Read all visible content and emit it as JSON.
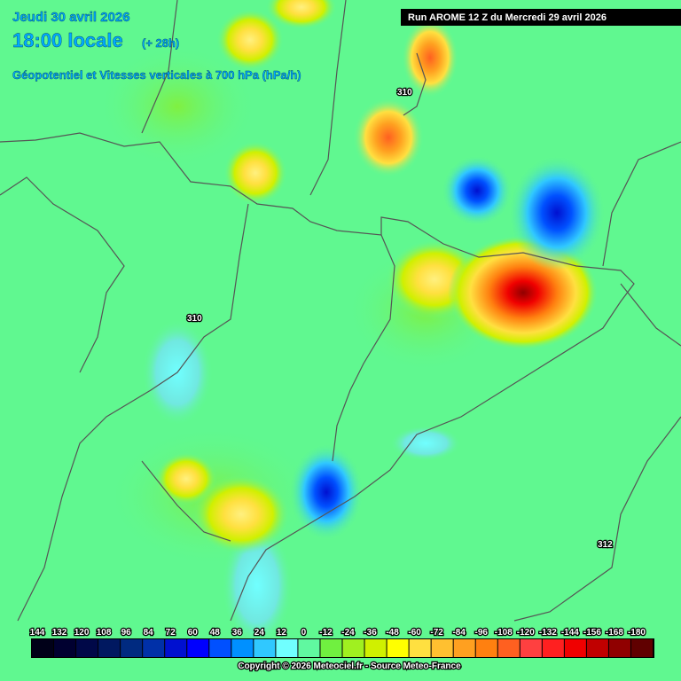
{
  "header": {
    "date": "Jeudi 30 avril 2026",
    "time": "18:00 locale",
    "offset": "(+ 28h)",
    "field": "Géopotentiel et Vitesses verticales à 700 hPa (hPa/h)"
  },
  "run": "Run AROME 12 Z du Mercredi 29 avril 2026",
  "contour_labels": [
    "310",
    "310",
    "312"
  ],
  "legend": {
    "ticks": [
      144,
      132,
      120,
      108,
      96,
      84,
      72,
      60,
      48,
      36,
      24,
      12,
      0,
      -12,
      -24,
      -36,
      -48,
      -60,
      -72,
      -84,
      -96,
      -108,
      -120,
      -132,
      -144,
      -156,
      -168,
      -180
    ],
    "colors": [
      "#000018",
      "#000030",
      "#000848",
      "#001860",
      "#002a80",
      "#0030a8",
      "#0010d0",
      "#0000ff",
      "#0050ff",
      "#0090ff",
      "#30c8ff",
      "#70ffff",
      "#60f8a0",
      "#70f040",
      "#a0f020",
      "#d0f000",
      "#ffff00",
      "#ffe040",
      "#ffc030",
      "#ffa020",
      "#ff8010",
      "#ff6020",
      "#ff4040",
      "#ff2020",
      "#f00000",
      "#c00000",
      "#900000",
      "#600000"
    ]
  },
  "footer": "Copyright © 2026 Meteociel.fr - Source Meteo-France"
}
